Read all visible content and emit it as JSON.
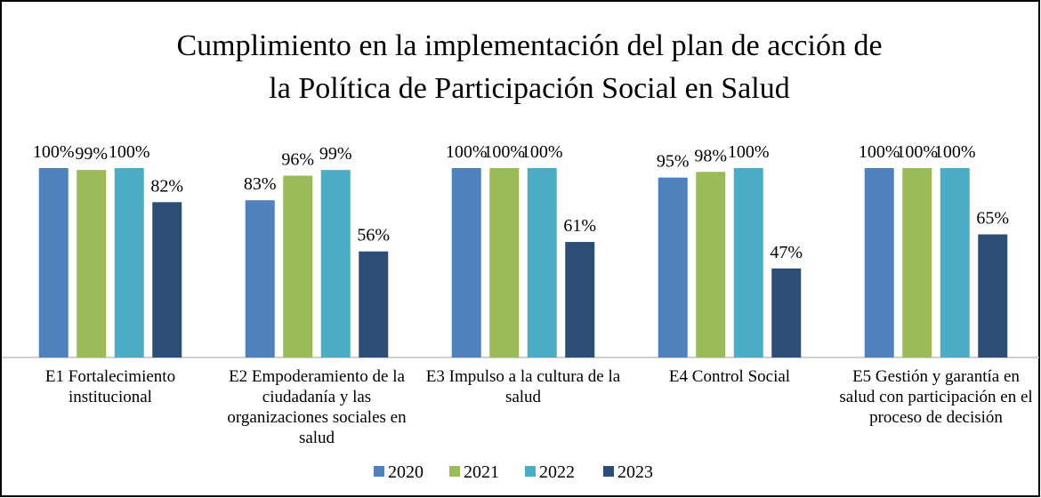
{
  "chart_data": {
    "type": "bar",
    "title": [
      "Cumplimiento en la implementación del plan de acción de",
      "la  Política de Participación Social en Salud"
    ],
    "categories": [
      "E1 Fortalecimiento institucional",
      "E2 Empoderamiento de la ciudadanía y las organizaciones sociales en salud",
      "E3 Impulso a la cultura de la salud",
      "E4 Control Social",
      "E5 Gestión y garantía en salud con participación en el proceso de decisión"
    ],
    "series": [
      {
        "name": "2020",
        "color": "#4f81bd",
        "values": [
          100,
          83,
          100,
          95,
          100
        ],
        "value_labels": [
          "100%",
          "83%",
          "100%",
          "95%",
          "100%"
        ]
      },
      {
        "name": "2021",
        "color": "#9bbb59",
        "values": [
          99,
          96,
          100,
          98,
          100
        ],
        "value_labels": [
          "99%",
          "96%",
          "100%",
          "98%",
          "100%"
        ]
      },
      {
        "name": "2022",
        "color": "#4bacc6",
        "values": [
          100,
          99,
          100,
          100,
          100
        ],
        "value_labels": [
          "100%",
          "99%",
          "100%",
          "100%",
          "100%"
        ]
      },
      {
        "name": "2023",
        "color": "#2c4d75",
        "values": [
          82,
          56,
          61,
          47,
          65
        ],
        "value_labels": [
          "82%",
          "56%",
          "61%",
          "47%",
          "65%"
        ]
      }
    ],
    "ylim": [
      0,
      100
    ],
    "legend": "bottom"
  }
}
